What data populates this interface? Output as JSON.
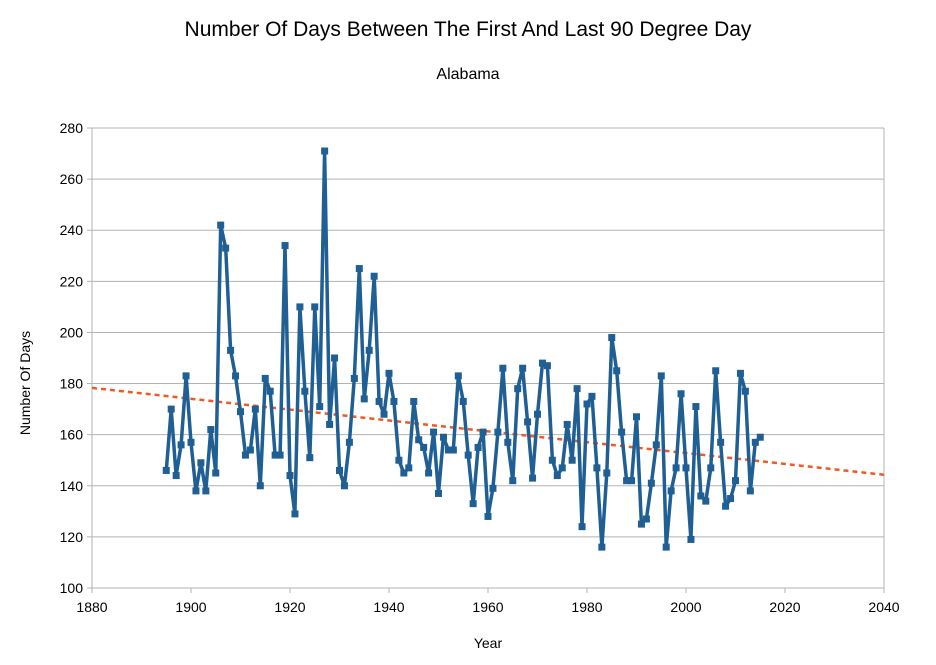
{
  "chart_data": {
    "type": "line",
    "title": "Number Of Days Between The First And Last 90 Degree Day",
    "subtitle": "Alabama",
    "xlabel": "Year",
    "ylabel": "Number Of Days",
    "xlim": [
      1880,
      2040
    ],
    "ylim": [
      100,
      280
    ],
    "xticks": [
      1880,
      1900,
      1920,
      1940,
      1960,
      1980,
      2000,
      2020,
      2040
    ],
    "yticks": [
      100,
      120,
      140,
      160,
      180,
      200,
      220,
      240,
      260,
      280
    ],
    "grid": "horizontal",
    "series": [
      {
        "color": "#1f5f94",
        "marker": "square",
        "x": [
          1895,
          1896,
          1897,
          1898,
          1899,
          1900,
          1901,
          1902,
          1903,
          1904,
          1905,
          1906,
          1907,
          1908,
          1909,
          1910,
          1911,
          1912,
          1913,
          1914,
          1915,
          1916,
          1917,
          1918,
          1919,
          1920,
          1921,
          1922,
          1923,
          1924,
          1925,
          1926,
          1927,
          1928,
          1929,
          1930,
          1931,
          1932,
          1933,
          1934,
          1935,
          1936,
          1937,
          1938,
          1939,
          1940,
          1941,
          1942,
          1943,
          1944,
          1945,
          1946,
          1947,
          1948,
          1949,
          1950,
          1951,
          1952,
          1953,
          1954,
          1955,
          1956,
          1957,
          1958,
          1959,
          1960,
          1961,
          1962,
          1963,
          1964,
          1965,
          1966,
          1967,
          1968,
          1969,
          1970,
          1971,
          1972,
          1973,
          1974,
          1975,
          1976,
          1977,
          1978,
          1979,
          1980,
          1981,
          1982,
          1983,
          1984,
          1985,
          1986,
          1987,
          1988,
          1989,
          1990,
          1991,
          1992,
          1993,
          1994,
          1995,
          1996,
          1997,
          1998,
          1999,
          2000,
          2001,
          2002,
          2003,
          2004,
          2005,
          2006,
          2007,
          2008,
          2009,
          2010,
          2011,
          2012,
          2013,
          2014,
          2015
        ],
        "y": [
          146,
          170,
          144,
          156,
          183,
          157,
          138,
          149,
          138,
          162,
          145,
          242,
          233,
          193,
          183,
          169,
          152,
          154,
          170,
          140,
          182,
          177,
          152,
          152,
          234,
          144,
          129,
          210,
          177,
          151,
          210,
          171,
          271,
          164,
          190,
          146,
          140,
          157,
          182,
          225,
          174,
          193,
          222,
          173,
          168,
          184,
          173,
          150,
          145,
          147,
          173,
          158,
          155,
          145,
          161,
          137,
          159,
          154,
          154,
          183,
          173,
          152,
          133,
          155,
          161,
          128,
          139,
          161,
          186,
          157,
          142,
          178,
          186,
          165,
          143,
          168,
          188,
          187,
          150,
          144,
          147,
          164,
          150,
          178,
          124,
          172,
          175,
          147,
          116,
          145,
          198,
          185,
          161,
          142,
          142,
          167,
          125,
          127,
          141,
          156,
          183,
          116,
          138,
          147,
          176,
          147,
          119,
          171,
          136,
          134,
          147,
          185,
          157,
          132,
          135,
          142,
          184,
          177,
          138,
          157,
          159
        ]
      }
    ],
    "trendline": {
      "color": "#ee5a24",
      "style": "dotted",
      "x": [
        1880,
        2040
      ],
      "y": [
        178.3,
        144.3
      ]
    }
  }
}
